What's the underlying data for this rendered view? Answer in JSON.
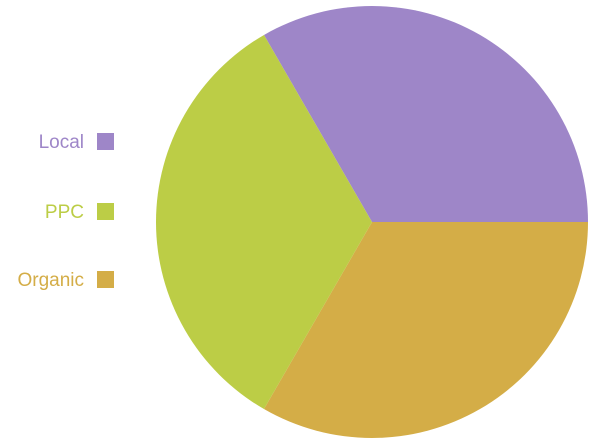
{
  "chart_data": {
    "type": "pie",
    "title": "",
    "slices": [
      {
        "label": "Local",
        "value": 33.33,
        "color": "#9e86c8"
      },
      {
        "label": "PPC",
        "value": 33.33,
        "color": "#bccd46"
      },
      {
        "label": "Organic",
        "value": 33.34,
        "color": "#d4ad47"
      }
    ],
    "legend_position": "left",
    "slice_order_note": "clockwise from the top-left slice boundary"
  }
}
